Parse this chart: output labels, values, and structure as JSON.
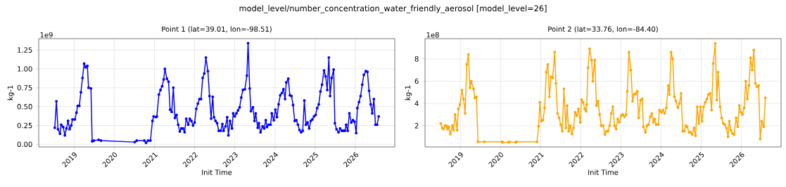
{
  "chart_data": [
    {
      "type": "line",
      "title": "Point 1 (lat=39.01, lon=-98.51)",
      "xlabel": "Init Time",
      "ylabel": "kg-1",
      "annotations": [
        "model_level/number_concentration_water_friendly_aerosol [model_level=26]",
        "1e9"
      ],
      "xlim": [
        2018.12,
        2026.98
      ],
      "xticks": [
        2019,
        2020,
        2021,
        2022,
        2023,
        2024,
        2025,
        2026
      ],
      "ylim": [
        -0.034,
        1.4
      ],
      "yticks": [
        {
          "value": 0,
          "label": "0.00"
        },
        {
          "value": 0.25,
          "label": "0.25"
        },
        {
          "value": 0.5,
          "label": "0.50"
        },
        {
          "value": 0.75,
          "label": "0.75"
        },
        {
          "value": 1,
          "label": "1.00"
        },
        {
          "value": 1.25,
          "label": "1.25"
        }
      ],
      "grid": true,
      "marker": "circle",
      "series": [
        {
          "color": "#0000ff",
          "x": [
            2018.52,
            2018.56,
            2018.6,
            2018.65,
            2018.68,
            2018.73,
            2018.77,
            2018.81,
            2018.85,
            2018.89,
            2018.93,
            2018.96,
            2019.02,
            2019.06,
            2019.09,
            2019.13,
            2019.17,
            2019.21,
            2019.25,
            2019.29,
            2019.33,
            2019.36,
            2019.42,
            2019.45,
            2019.49,
            2019.61,
            2019.67,
            2020.51,
            2020.56,
            2020.75,
            2020.79,
            2020.84,
            2020.9,
            2020.95,
            2020.98,
            2021.04,
            2021.06,
            2021.11,
            2021.15,
            2021.19,
            2021.23,
            2021.26,
            2021.31,
            2021.35,
            2021.39,
            2021.43,
            2021.47,
            2021.51,
            2021.55,
            2021.59,
            2021.63,
            2021.67,
            2021.71,
            2021.75,
            2021.79,
            2021.84,
            2021.88,
            2021.92,
            2021.96,
            2022.0,
            2022.04,
            2022.08,
            2022.12,
            2022.16,
            2022.2,
            2022.24,
            2022.28,
            2022.33,
            2022.37,
            2022.41,
            2022.45,
            2022.48,
            2022.52,
            2022.56,
            2022.6,
            2022.65,
            2022.69,
            2022.72,
            2022.77,
            2022.81,
            2022.84,
            2022.88,
            2022.93,
            2022.96,
            2023.0,
            2023.04,
            2023.08,
            2023.12,
            2023.16,
            2023.2,
            2023.25,
            2023.3,
            2023.33,
            2023.37,
            2023.4,
            2023.45,
            2023.49,
            2023.52,
            2023.57,
            2023.6,
            2023.64,
            2023.69,
            2023.73,
            2023.77,
            2023.8,
            2023.84,
            2023.89,
            2023.92,
            2023.97,
            2024.01,
            2024.05,
            2024.09,
            2024.13,
            2024.17,
            2024.21,
            2024.25,
            2024.28,
            2024.33,
            2024.37,
            2024.41,
            2024.45,
            2024.49,
            2024.53,
            2024.57,
            2024.61,
            2024.65,
            2024.69,
            2024.73,
            2024.77,
            2024.81,
            2024.85,
            2024.89,
            2024.93,
            2024.97,
            2025.01,
            2025.05,
            2025.09,
            2025.13,
            2025.17,
            2025.22,
            2025.26,
            2025.3,
            2025.34,
            2025.37,
            2025.41,
            2025.46,
            2025.49,
            2025.53,
            2025.58,
            2025.62,
            2025.66,
            2025.7,
            2025.74,
            2025.77,
            2025.81,
            2025.85,
            2025.9,
            2025.94,
            2025.98,
            2026.02,
            2026.05,
            2026.09,
            2026.13,
            2026.17,
            2026.21,
            2026.26,
            2026.3,
            2026.34,
            2026.38,
            2026.42,
            2026.46,
            2026.5,
            2026.54,
            2026.58
          ],
          "values": [
            0.22,
            0.57,
            0.2,
            0.14,
            0.26,
            0.23,
            0.12,
            0.21,
            0.31,
            0.2,
            0.25,
            0.33,
            0.33,
            0.42,
            0.51,
            0.51,
            0.69,
            0.88,
            1.07,
            1.02,
            1.04,
            0.75,
            0.74,
            0.04,
            0.05,
            0.06,
            0.05,
            0.03,
            0.05,
            0.05,
            0.02,
            0.05,
            0.05,
            0.31,
            0.37,
            0.36,
            0.37,
            0.66,
            0.72,
            0.77,
            0.86,
            1.0,
            0.87,
            0.83,
            0.46,
            0.43,
            0.75,
            0.35,
            0.39,
            0.26,
            0.17,
            0.21,
            0.21,
            0.16,
            0.34,
            0.26,
            0.34,
            0.31,
            0.25,
            0.29,
            0.47,
            0.54,
            0.6,
            0.6,
            0.88,
            0.94,
            1.15,
            0.97,
            0.64,
            0.34,
            0.63,
            0.36,
            0.31,
            0.28,
            0.18,
            0.18,
            0.27,
            0.18,
            0.24,
            0.36,
            0.12,
            0.31,
            0.21,
            0.41,
            0.37,
            0.41,
            0.45,
            0.49,
            0.62,
            0.72,
            0.73,
            0.91,
            1.34,
            0.74,
            0.44,
            0.49,
            0.31,
            0.41,
            0.22,
            0.28,
            0.16,
            0.24,
            0.21,
            0.32,
            0.23,
            0.26,
            0.26,
            0.41,
            0.32,
            0.46,
            0.36,
            0.53,
            0.65,
            0.68,
            0.73,
            0.6,
            0.82,
            0.87,
            0.65,
            0.64,
            0.52,
            0.31,
            0.32,
            0.26,
            0.19,
            0.16,
            0.18,
            0.58,
            0.26,
            0.29,
            0.21,
            0.31,
            0.33,
            0.37,
            0.39,
            0.48,
            0.53,
            0.7,
            0.79,
            0.98,
            0.9,
            0.72,
            1.15,
            0.64,
            0.88,
            0.99,
            0.28,
            0.2,
            0.16,
            0.21,
            0.18,
            0.18,
            0.18,
            0.26,
            0.18,
            0.41,
            0.29,
            0.32,
            0.3,
            0.15,
            0.48,
            0.56,
            0.64,
            0.79,
            0.92,
            0.97,
            0.96,
            0.71,
            0.53,
            0.41,
            0.6,
            0.26,
            0.26,
            0.37
          ]
        }
      ]
    },
    {
      "type": "line",
      "title": "Point 2 (lat=33.76, lon=-84.40)",
      "xlabel": "Init Time",
      "ylabel": "kg-1",
      "annotations": [
        "1e8"
      ],
      "xlim": [
        2018.12,
        2026.99
      ],
      "xticks": [
        2019,
        2020,
        2021,
        2022,
        2023,
        2024,
        2025,
        2026
      ],
      "ylim": [
        0.09,
        9.82
      ],
      "yticks": [
        2,
        4,
        6,
        8
      ],
      "grid": true,
      "marker": "circle",
      "series": [
        {
          "color": "#ffa500",
          "x": [
            2018.51,
            2018.55,
            2018.58,
            2018.62,
            2018.65,
            2018.68,
            2018.71,
            2018.75,
            2018.8,
            2018.83,
            2018.87,
            2018.92,
            2018.95,
            2018.99,
            2019.04,
            2019.08,
            2019.12,
            2019.16,
            2019.2,
            2019.24,
            2019.27,
            2019.33,
            2019.36,
            2019.4,
            2019.44,
            2019.6,
            2020.04,
            2020.06,
            2020.2,
            2020.22,
            2020.38,
            2020.4,
            2020.91,
            2020.95,
            2020.98,
            2021.02,
            2021.06,
            2021.1,
            2021.14,
            2021.18,
            2021.22,
            2021.26,
            2021.3,
            2021.35,
            2021.38,
            2021.42,
            2021.46,
            2021.5,
            2021.54,
            2021.58,
            2021.63,
            2021.66,
            2021.7,
            2021.74,
            2021.78,
            2021.82,
            2021.86,
            2021.9,
            2021.94,
            2021.99,
            2022.02,
            2022.06,
            2022.1,
            2022.13,
            2022.15,
            2022.18,
            2022.22,
            2022.27,
            2022.3,
            2022.35,
            2022.39,
            2022.43,
            2022.47,
            2022.51,
            2022.56,
            2022.6,
            2022.64,
            2022.68,
            2022.72,
            2022.76,
            2022.8,
            2022.84,
            2022.88,
            2022.92,
            2022.96,
            2023.01,
            2023.05,
            2023.09,
            2023.13,
            2023.16,
            2023.2,
            2023.25,
            2023.29,
            2023.33,
            2023.37,
            2023.41,
            2023.44,
            2023.49,
            2023.53,
            2023.56,
            2023.61,
            2023.65,
            2023.69,
            2023.73,
            2023.77,
            2023.81,
            2023.84,
            2023.88,
            2023.93,
            2023.96,
            2024.01,
            2024.05,
            2024.09,
            2024.13,
            2024.18,
            2024.21,
            2024.25,
            2024.29,
            2024.33,
            2024.37,
            2024.42,
            2024.46,
            2024.5,
            2024.54,
            2024.58,
            2024.62,
            2024.65,
            2024.7,
            2024.74,
            2024.78,
            2024.82,
            2024.86,
            2024.9,
            2024.94,
            2024.98,
            2025.02,
            2025.06,
            2025.1,
            2025.14,
            2025.18,
            2025.22,
            2025.26,
            2025.3,
            2025.35,
            2025.39,
            2025.42,
            2025.47,
            2025.51,
            2025.55,
            2025.59,
            2025.63,
            2025.67,
            2025.7,
            2025.74,
            2025.78,
            2025.82,
            2025.87,
            2025.91,
            2025.95,
            2025.99,
            2026.03,
            2026.07,
            2026.11,
            2026.15,
            2026.19,
            2026.23,
            2026.27,
            2026.31,
            2026.35,
            2026.39,
            2026.43,
            2026.47,
            2026.51,
            2026.56,
            2026.6
          ],
          "values": [
            2.2,
            1.8,
            1.7,
            2.0,
            2.0,
            1.7,
            1.9,
            1.25,
            2.0,
            1.6,
            3.0,
            1.6,
            3.5,
            3.9,
            5.2,
            4.4,
            3.1,
            7.5,
            8.4,
            5.4,
            6.0,
            5.3,
            4.5,
            4.6,
            0.55,
            0.55,
            0.55,
            0.5,
            0.5,
            0.55,
            0.5,
            0.55,
            0.55,
            1.95,
            4.1,
            2.4,
            2.5,
            3.6,
            6.8,
            7.5,
            4.6,
            6.4,
            6.3,
            8.6,
            5.8,
            3.1,
            2.7,
            2.1,
            1.5,
            5.3,
            1.8,
            3.8,
            1.5,
            2.0,
            1.25,
            1.8,
            3.2,
            2.9,
            3.5,
            2.3,
            4.35,
            4.1,
            3.5,
            3.3,
            3.9,
            7.2,
            8.9,
            7.9,
            6.0,
            7.9,
            3.8,
            4.2,
            3.0,
            2.0,
            2.0,
            1.2,
            1.5,
            1.5,
            2.0,
            3.1,
            3.7,
            2.0,
            1.7,
            2.6,
            2.3,
            2.9,
            3.0,
            2.8,
            3.0,
            5.1,
            8.6,
            7.0,
            4.2,
            4.8,
            4.9,
            5.1,
            2.7,
            4.3,
            4.4,
            1.9,
            1.4,
            2.0,
            2.1,
            2.8,
            3.1,
            2.3,
            2.6,
            2.1,
            2.1,
            3.4,
            3.2,
            3.4,
            3.1,
            3.6,
            5.6,
            4.8,
            8.6,
            8.0,
            4.6,
            4.2,
            3.6,
            4.0,
            4.9,
            1.5,
            1.5,
            2.0,
            1.9,
            1.4,
            1.4,
            1.2,
            1.8,
            1.1,
            3.7,
            2.2,
            3.7,
            2.4,
            3.7,
            4.1,
            4.4,
            4.8,
            4.9,
            3.4,
            7.6,
            9.4,
            4.3,
            6.8,
            3.7,
            2.7,
            2.2,
            2.1,
            1.8,
            1.0,
            2.4,
            1.6,
            1.3,
            1.2,
            2.7,
            1.9,
            3.8,
            3.2,
            3.0,
            3.6,
            6.0,
            4.4,
            5.6,
            8.1,
            7.0,
            8.8,
            5.8,
            5.5,
            5.6,
            0.8,
            2.4,
            1.9,
            4.5
          ]
        }
      ]
    }
  ]
}
